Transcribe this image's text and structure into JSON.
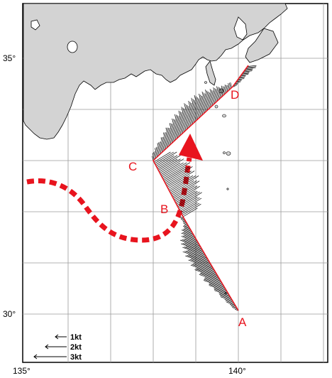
{
  "map": {
    "lon_ticks": [
      "135°",
      "140°"
    ],
    "lat_ticks": [
      "35°",
      "30°"
    ],
    "track_points": [
      {
        "label": "A",
        "lon": 140.0,
        "lat": 30.05
      },
      {
        "label": "B",
        "lon": 138.7,
        "lat": 32.0
      },
      {
        "label": "C",
        "lon": 138.0,
        "lat": 33.0
      },
      {
        "label": "D",
        "lon": 139.8,
        "lat": 34.2
      }
    ],
    "current_scale": [
      {
        "label": "1kt",
        "speed_kt": 1
      },
      {
        "label": "2kt",
        "speed_kt": 2
      },
      {
        "label": "3kt",
        "speed_kt": 3
      }
    ],
    "colors": {
      "land": "#d3d3d3",
      "track": "#e8141e",
      "kuroshio": "#e8141e",
      "vectors": "#000000",
      "grid": "#9a9a9a"
    }
  }
}
